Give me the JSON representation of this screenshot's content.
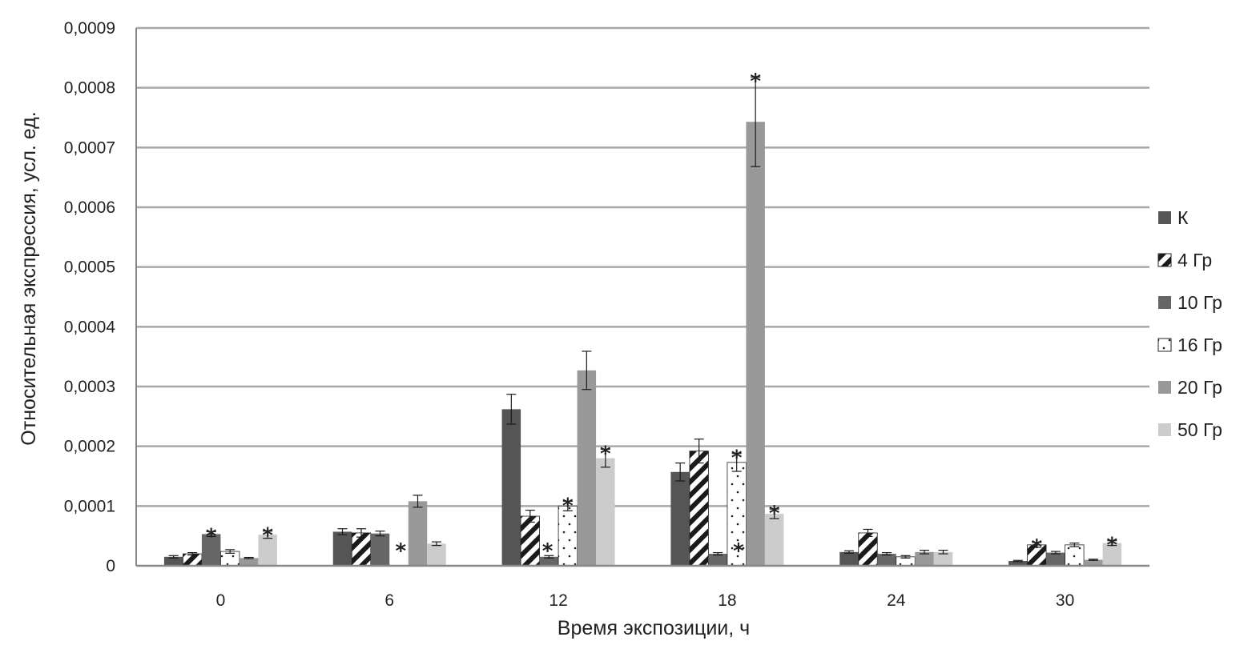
{
  "chart_data": {
    "type": "bar",
    "xlabel": "Время экспозиции, ч",
    "ylabel": "Относительная экспрессия, усл. ед.",
    "categories": [
      "0",
      "6",
      "12",
      "18",
      "24",
      "30"
    ],
    "y_ticks": [
      "0",
      "0,0001",
      "0,0002",
      "0,0003",
      "0,0004",
      "0,0005",
      "0,0006",
      "0,0007",
      "0,0008",
      "0,0009"
    ],
    "ylim": [
      0,
      0.0009
    ],
    "grid": true,
    "legend_position": "right",
    "series": [
      {
        "name": "К",
        "pattern": "solid-dark",
        "color": "#555555",
        "values": [
          1.5e-05,
          5.7e-05,
          0.000262,
          0.000157,
          2.3e-05,
          8e-06
        ],
        "errors": [
          2e-06,
          5e-06,
          2.5e-05,
          1.5e-05,
          2e-06,
          1e-06
        ],
        "significant": [
          false,
          false,
          false,
          false,
          false,
          false
        ]
      },
      {
        "name": "4 Гр",
        "pattern": "diagonal-stripes",
        "color": "#222222",
        "values": [
          2e-05,
          5.5e-05,
          8.3e-05,
          0.000192,
          5.5e-05,
          3.5e-05
        ],
        "errors": [
          2e-06,
          7e-06,
          1e-05,
          2e-05,
          6e-06,
          4e-06
        ],
        "significant": [
          false,
          false,
          true,
          false,
          false,
          true
        ]
      },
      {
        "name": "10 Гр",
        "pattern": "solid-mid",
        "color": "#666666",
        "values": [
          5.3e-05,
          5.4e-05,
          1.5e-05,
          2e-05,
          2e-05,
          2.2e-05
        ],
        "errors": [
          4e-06,
          4e-06,
          2e-06,
          2e-06,
          2e-06,
          2e-06
        ],
        "significant": [
          true,
          true,
          false,
          true,
          false,
          false
        ]
      },
      {
        "name": "16 Гр",
        "pattern": "dots",
        "color": "#ffffff",
        "values": [
          2.4e-05,
          0,
          0.0001,
          0.000173,
          1.5e-05,
          3.5e-05
        ],
        "errors": [
          3e-06,
          0,
          8e-06,
          1.5e-05,
          2e-06,
          3e-06
        ],
        "significant": [
          false,
          false,
          true,
          true,
          false,
          false
        ]
      },
      {
        "name": "20 Гр",
        "pattern": "solid-gray",
        "color": "#999999",
        "values": [
          1.3e-05,
          0.000108,
          0.000327,
          0.000743,
          2.3e-05,
          1e-05
        ],
        "errors": [
          1e-06,
          1e-05,
          3.2e-05,
          7.5e-05,
          3e-06,
          1e-06
        ],
        "significant": [
          false,
          false,
          false,
          true,
          false,
          false
        ]
      },
      {
        "name": "50 Гр",
        "pattern": "solid-light",
        "color": "#cccccc",
        "values": [
          5.2e-05,
          3.7e-05,
          0.00018,
          8.7e-05,
          2.3e-05,
          3.8e-05
        ],
        "errors": [
          6e-06,
          3e-06,
          1.5e-05,
          8e-06,
          3e-06,
          4e-06
        ],
        "significant": [
          true,
          false,
          true,
          true,
          false,
          true
        ]
      }
    ],
    "significance_marker": "*"
  }
}
